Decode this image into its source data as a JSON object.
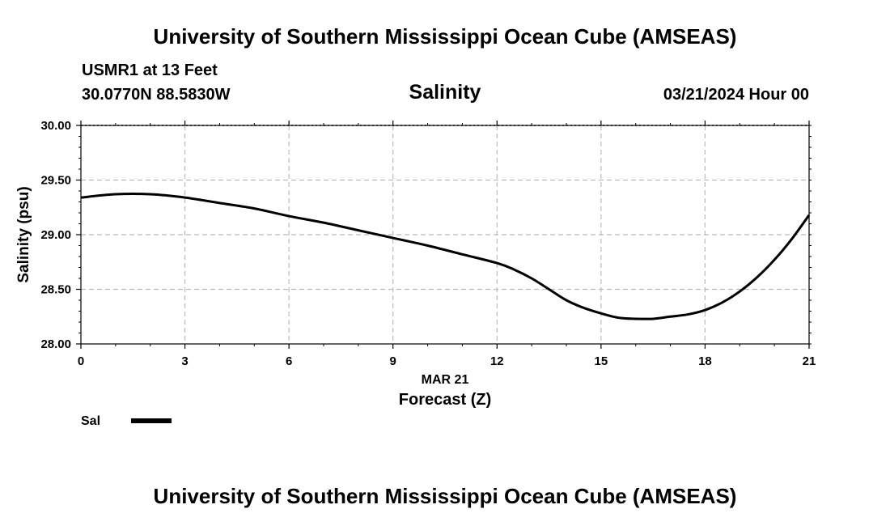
{
  "header": {
    "title": "University of Southern Mississippi Ocean Cube (AMSEAS)",
    "station": "USMR1 at 13 Feet",
    "coords": "30.0770N  88.5830W",
    "datetime": "03/21/2024 Hour 00"
  },
  "footer": {
    "title": "University of Southern Mississippi Ocean Cube (AMSEAS)"
  },
  "colors": {
    "line": "#000000",
    "grid": "#bbbbbb"
  },
  "chart_data": {
    "type": "line",
    "title": "Salinity",
    "xlabel": "Forecast (Z)",
    "xlabel_date": "MAR 21",
    "ylabel": "Salinity (psu)",
    "xlim": [
      0,
      21
    ],
    "ylim": [
      28.0,
      30.0
    ],
    "xticks": [
      0,
      3,
      6,
      9,
      12,
      15,
      18,
      21
    ],
    "xtick_labels": [
      "0",
      "3",
      "6",
      "9",
      "12",
      "15",
      "18",
      "21"
    ],
    "yticks": [
      28.0,
      28.5,
      29.0,
      29.5,
      30.0
    ],
    "ytick_labels": [
      "28.00",
      "28.50",
      "29.00",
      "29.50",
      "30.00"
    ],
    "grid": true,
    "legend": {
      "position": "bottom-left",
      "entries": [
        "Sal"
      ]
    },
    "series": [
      {
        "name": "Sal",
        "x": [
          0,
          1,
          2,
          3,
          4,
          5,
          6,
          7,
          8,
          9,
          10,
          11,
          12,
          12.5,
          13,
          13.5,
          14,
          14.5,
          15,
          15.5,
          16,
          16.5,
          17,
          17.5,
          18,
          18.5,
          19,
          19.5,
          20,
          20.5,
          21
        ],
        "values": [
          29.34,
          29.37,
          29.37,
          29.34,
          29.29,
          29.24,
          29.17,
          29.11,
          29.04,
          28.97,
          28.9,
          28.82,
          28.74,
          28.68,
          28.6,
          28.5,
          28.4,
          28.33,
          28.28,
          28.24,
          28.23,
          28.23,
          28.25,
          28.27,
          28.31,
          28.38,
          28.48,
          28.61,
          28.77,
          28.96,
          29.18
        ]
      }
    ]
  }
}
